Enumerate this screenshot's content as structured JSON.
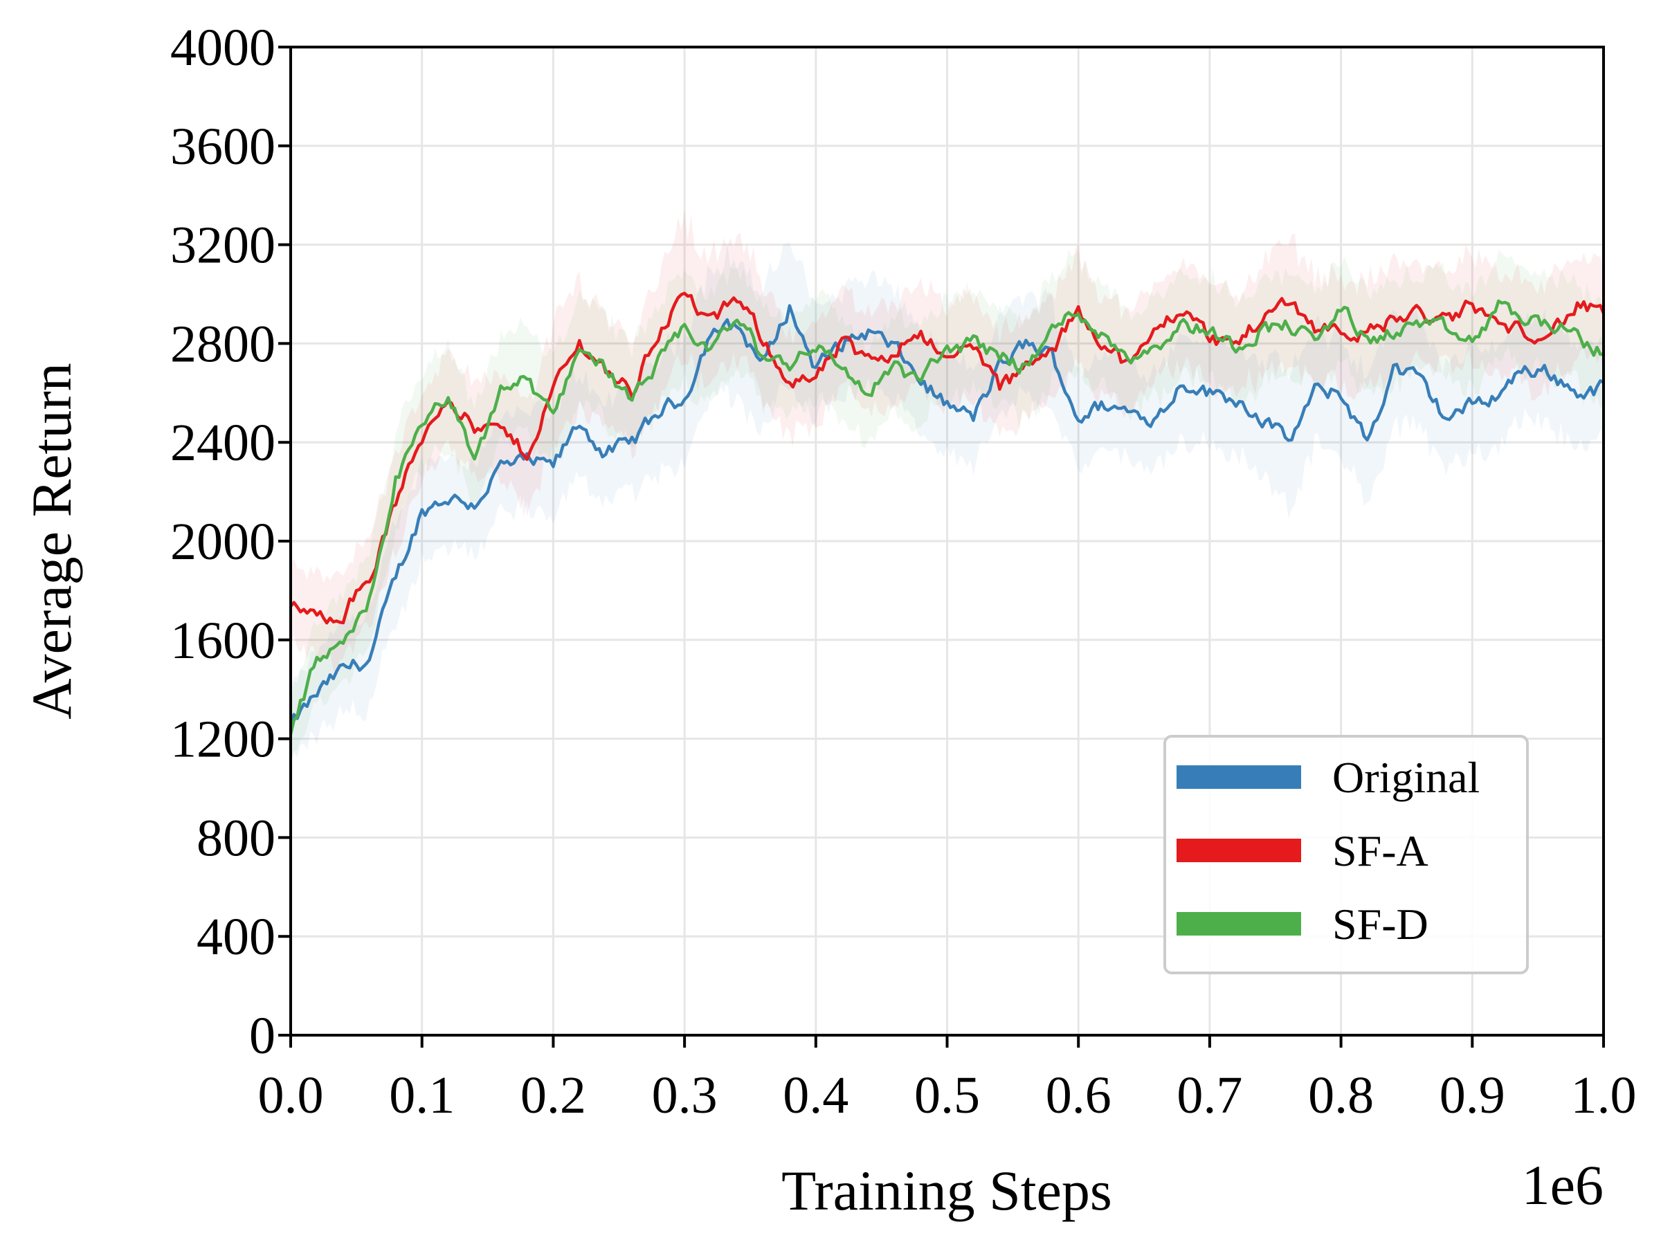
{
  "chart_data": {
    "type": "line",
    "title": "",
    "xlabel": "Training Steps",
    "ylabel": "Average Return",
    "x_offset_label": "1e6",
    "xlim": [
      0.0,
      1.0
    ],
    "ylim": [
      0,
      4000
    ],
    "x_ticks": [
      0.0,
      0.1,
      0.2,
      0.3,
      0.4,
      0.5,
      0.6,
      0.7,
      0.8,
      0.9,
      1.0
    ],
    "x_tick_labels": [
      "0.0",
      "0.1",
      "0.2",
      "0.3",
      "0.4",
      "0.5",
      "0.6",
      "0.7",
      "0.8",
      "0.9",
      "1.0"
    ],
    "y_ticks": [
      0,
      400,
      800,
      1200,
      1600,
      2000,
      2400,
      2800,
      3200,
      3600,
      4000
    ],
    "y_tick_labels": [
      "0",
      "400",
      "800",
      "1200",
      "1600",
      "2000",
      "2400",
      "2800",
      "3200",
      "3600",
      "4000"
    ],
    "grid": true,
    "legend_position": "lower-right",
    "x": [
      0.0,
      0.02,
      0.04,
      0.06,
      0.08,
      0.1,
      0.12,
      0.14,
      0.16,
      0.18,
      0.2,
      0.22,
      0.24,
      0.26,
      0.28,
      0.3,
      0.32,
      0.34,
      0.36,
      0.38,
      0.4,
      0.42,
      0.44,
      0.46,
      0.48,
      0.5,
      0.52,
      0.54,
      0.56,
      0.58,
      0.6,
      0.62,
      0.64,
      0.66,
      0.68,
      0.7,
      0.72,
      0.74,
      0.76,
      0.78,
      0.8,
      0.82,
      0.84,
      0.86,
      0.88,
      0.9,
      0.92,
      0.94,
      0.96,
      0.98,
      1.0
    ],
    "series": [
      {
        "name": "Original",
        "color": "#377eb8",
        "values": [
          1250,
          1380,
          1480,
          1520,
          1850,
          2120,
          2180,
          2150,
          2300,
          2320,
          2300,
          2480,
          2350,
          2400,
          2520,
          2580,
          2850,
          2870,
          2720,
          2950,
          2700,
          2800,
          2850,
          2780,
          2650,
          2550,
          2500,
          2700,
          2800,
          2750,
          2500,
          2550,
          2520,
          2500,
          2650,
          2600,
          2580,
          2500,
          2400,
          2600,
          2600,
          2400,
          2700,
          2650,
          2500,
          2550,
          2600,
          2700,
          2680,
          2600,
          2620
        ],
        "band": [
          140,
          170,
          190,
          200,
          200,
          190,
          180,
          180,
          200,
          200,
          210,
          210,
          200,
          200,
          230,
          260,
          270,
          280,
          270,
          290,
          230,
          220,
          220,
          220,
          200,
          190,
          190,
          200,
          200,
          210,
          200,
          200,
          200,
          200,
          210,
          210,
          220,
          240,
          270,
          240,
          230,
          250,
          230,
          220,
          210,
          210,
          200,
          200,
          210,
          210,
          200
        ]
      },
      {
        "name": "SF-A",
        "color": "#e41a1c",
        "values": [
          1750,
          1680,
          1720,
          1850,
          2150,
          2420,
          2600,
          2450,
          2450,
          2350,
          2620,
          2800,
          2700,
          2600,
          2850,
          3000,
          2880,
          2980,
          2820,
          2650,
          2650,
          2800,
          2720,
          2780,
          2860,
          2720,
          2800,
          2620,
          2700,
          2760,
          2940,
          2800,
          2700,
          2860,
          2950,
          2820,
          2800,
          2900,
          2980,
          2870,
          2860,
          2840,
          2900,
          2920,
          2880,
          2960,
          2870,
          2850,
          2850,
          2950,
          2920
        ],
        "band": [
          150,
          170,
          180,
          190,
          190,
          180,
          180,
          190,
          200,
          210,
          240,
          260,
          220,
          220,
          260,
          290,
          250,
          240,
          230,
          210,
          200,
          200,
          200,
          210,
          210,
          200,
          210,
          200,
          210,
          220,
          220,
          200,
          200,
          200,
          210,
          200,
          200,
          220,
          240,
          220,
          210,
          210,
          220,
          200,
          200,
          220,
          200,
          200,
          210,
          200,
          200
        ]
      },
      {
        "name": "SF-D",
        "color": "#4daf4a",
        "values": [
          1220,
          1520,
          1560,
          1760,
          2250,
          2450,
          2600,
          2300,
          2620,
          2650,
          2500,
          2800,
          2700,
          2560,
          2720,
          2850,
          2780,
          2900,
          2750,
          2720,
          2800,
          2700,
          2600,
          2700,
          2650,
          2780,
          2800,
          2760,
          2700,
          2850,
          2940,
          2820,
          2750,
          2800,
          2880,
          2850,
          2790,
          2860,
          2880,
          2800,
          2950,
          2800,
          2850,
          2880,
          2850,
          2800,
          2950,
          2900,
          2880,
          2820,
          2760
        ],
        "band": [
          130,
          160,
          180,
          190,
          200,
          190,
          200,
          200,
          210,
          210,
          220,
          220,
          210,
          200,
          210,
          220,
          210,
          210,
          200,
          200,
          200,
          200,
          200,
          200,
          200,
          200,
          200,
          200,
          200,
          220,
          220,
          210,
          200,
          200,
          200,
          200,
          200,
          200,
          210,
          200,
          210,
          200,
          200,
          200,
          200,
          200,
          200,
          200,
          200,
          200,
          200
        ]
      }
    ]
  }
}
